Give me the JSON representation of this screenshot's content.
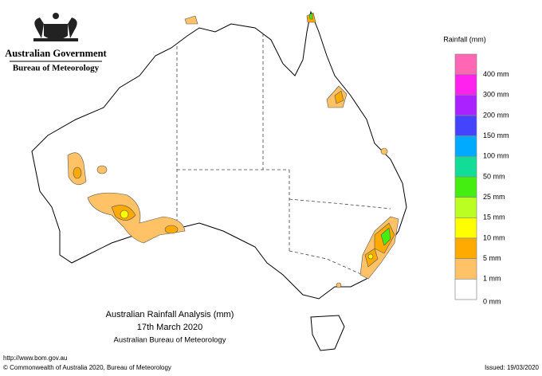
{
  "header": {
    "line1": "Australian Government",
    "line2": "Bureau of Meteorology"
  },
  "legend": {
    "title": "Rainfall (mm)",
    "items": [
      {
        "label": "400 mm",
        "color": "#ff66b3"
      },
      {
        "label": "300 mm",
        "color": "#ff22ee"
      },
      {
        "label": "200 mm",
        "color": "#aa22ff"
      },
      {
        "label": "150 mm",
        "color": "#4444ff"
      },
      {
        "label": "100 mm",
        "color": "#00aaff"
      },
      {
        "label": "50 mm",
        "color": "#11dd99"
      },
      {
        "label": "25 mm",
        "color": "#44ee11"
      },
      {
        "label": "15 mm",
        "color": "#bbff22"
      },
      {
        "label": "10 mm",
        "color": "#ffff00"
      },
      {
        "label": "5 mm",
        "color": "#ffaa00"
      },
      {
        "label": "1 mm",
        "color": "#ffc266"
      },
      {
        "label": "0 mm",
        "color": "#ffffff"
      }
    ]
  },
  "caption": {
    "title": "Australian Rainfall Analysis (mm)",
    "date": "17th March 2020",
    "agency": "Australian Bureau of Meteorology"
  },
  "footer": {
    "url": "http://www.bom.gov.au",
    "copyright": "© Commonwealth of Australia 2020, Bureau of Meteorology",
    "issued": "Issued: 19/03/2020"
  }
}
